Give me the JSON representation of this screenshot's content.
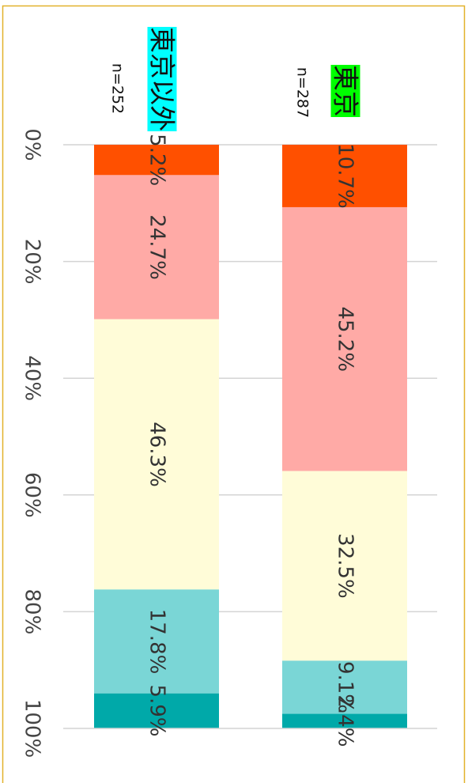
{
  "chart_data": {
    "type": "bar",
    "orientation": "horizontal",
    "stacked": true,
    "categories": [
      "東京以外",
      "東京"
    ],
    "category_colors": [
      "#00ffff",
      "#00ff00"
    ],
    "sample_sizes": [
      "n=252",
      "n=287"
    ],
    "series": [
      {
        "color": "#ff5000",
        "values": [
          5.2,
          10.7
        ],
        "value_labels": [
          "5.2%",
          "10.7%"
        ]
      },
      {
        "color": "#ffaaa6",
        "values": [
          24.7,
          45.2
        ],
        "value_labels": [
          "24.7%",
          "45.2%"
        ]
      },
      {
        "color": "#fffcd8",
        "values": [
          46.3,
          32.5
        ],
        "value_labels": [
          "46.3%",
          "32.5%"
        ]
      },
      {
        "color": "#7ad6d6",
        "values": [
          17.8,
          9.1
        ],
        "value_labels": [
          "17.8%",
          "9.1%"
        ]
      },
      {
        "color": "#00a9a9",
        "values": [
          5.9,
          2.4
        ],
        "value_labels": [
          "5.9%",
          "2.4%"
        ]
      }
    ],
    "xlim": [
      0,
      100
    ],
    "xticks": [
      {
        "value": 0,
        "label": "0%"
      },
      {
        "value": 20,
        "label": "20%"
      },
      {
        "value": 40,
        "label": "40%"
      },
      {
        "value": 60,
        "label": "60%"
      },
      {
        "value": 80,
        "label": "80%"
      },
      {
        "value": 100,
        "label": "100%"
      }
    ],
    "grid": true
  }
}
